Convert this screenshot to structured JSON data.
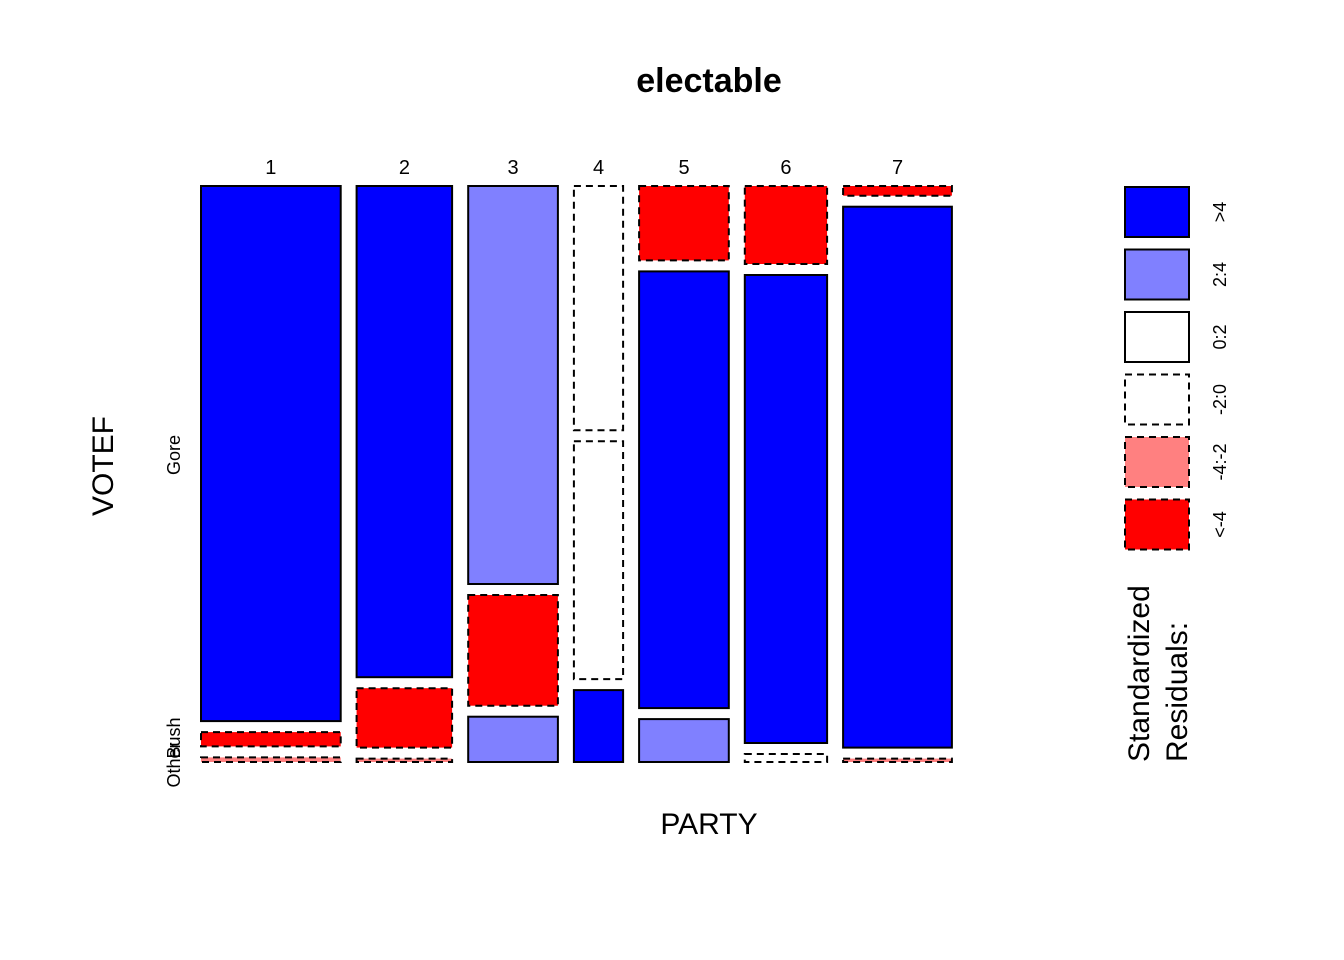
{
  "chart_data": {
    "type": "mosaic",
    "title": "electable",
    "xlabel": "PARTY",
    "ylabel": "VOTEF",
    "x_categories": [
      "1",
      "2",
      "3",
      "4",
      "5",
      "6",
      "7"
    ],
    "y_categories": [
      "Other",
      "Bush",
      "Gore"
    ],
    "y_tick_labels": [
      "Other",
      "Bush",
      "Gore"
    ],
    "column_proportions": [
      0.19,
      0.13,
      0.122,
      0.067,
      0.122,
      0.112,
      0.148
    ],
    "cells": [
      {
        "party": "1",
        "votes": [
          {
            "vote": "Gore",
            "prop": 0.933,
            "residual": ">4"
          },
          {
            "vote": "Bush",
            "prop": 0.025,
            "residual": "<-4"
          },
          {
            "vote": "Other",
            "prop": 0.008,
            "residual": "-4:-2"
          }
        ]
      },
      {
        "party": "2",
        "votes": [
          {
            "vote": "Gore",
            "prop": 0.86,
            "residual": ">4"
          },
          {
            "vote": "Bush",
            "prop": 0.104,
            "residual": "<-4"
          },
          {
            "vote": "Other",
            "prop": 0.006,
            "residual": "-4:-2"
          }
        ]
      },
      {
        "party": "3",
        "votes": [
          {
            "vote": "Gore",
            "prop": 0.694,
            "residual": "2:4"
          },
          {
            "vote": "Bush",
            "prop": 0.193,
            "residual": "<-4"
          },
          {
            "vote": "Other",
            "prop": 0.079,
            "residual": "2:4"
          }
        ]
      },
      {
        "party": "4",
        "votes": [
          {
            "vote": "Gore",
            "prop": 0.428,
            "residual": "-2:0"
          },
          {
            "vote": "Bush",
            "prop": 0.417,
            "residual": "-2:0"
          },
          {
            "vote": "Other",
            "prop": 0.126,
            "residual": ">4"
          }
        ]
      },
      {
        "party": "5",
        "votes": [
          {
            "vote": "Gore",
            "prop": 0.13,
            "residual": "<-4"
          },
          {
            "vote": "Bush",
            "prop": 0.763,
            "residual": ">4"
          },
          {
            "vote": "Other",
            "prop": 0.075,
            "residual": "2:4"
          }
        ]
      },
      {
        "party": "6",
        "votes": [
          {
            "vote": "Gore",
            "prop": 0.136,
            "residual": "<-4"
          },
          {
            "vote": "Bush",
            "prop": 0.816,
            "residual": ">4"
          },
          {
            "vote": "Other",
            "prop": 0.014,
            "residual": "-2:0"
          }
        ]
      },
      {
        "party": "7",
        "votes": [
          {
            "vote": "Gore",
            "prop": 0.017,
            "residual": "<-4"
          },
          {
            "vote": "Bush",
            "prop": 0.948,
            "residual": ">4"
          },
          {
            "vote": "Other",
            "prop": 0.006,
            "residual": "-4:-2"
          }
        ]
      }
    ],
    "legend": {
      "title": [
        "Standardized",
        "Residuals:"
      ],
      "position": "right",
      "entries": [
        {
          "label": ">4",
          "color": "#0000FF",
          "dashed": false
        },
        {
          "label": "2:4",
          "color": "#8080FF",
          "dashed": false
        },
        {
          "label": "0:2",
          "color": "#FFFFFF",
          "dashed": false
        },
        {
          "label": "-2:0",
          "color": "#FFFFFF",
          "dashed": true
        },
        {
          "label": "-4:-2",
          "color": "#FF8080",
          "dashed": true
        },
        {
          "label": "<-4",
          "color": "#FF0000",
          "dashed": true
        }
      ]
    }
  }
}
